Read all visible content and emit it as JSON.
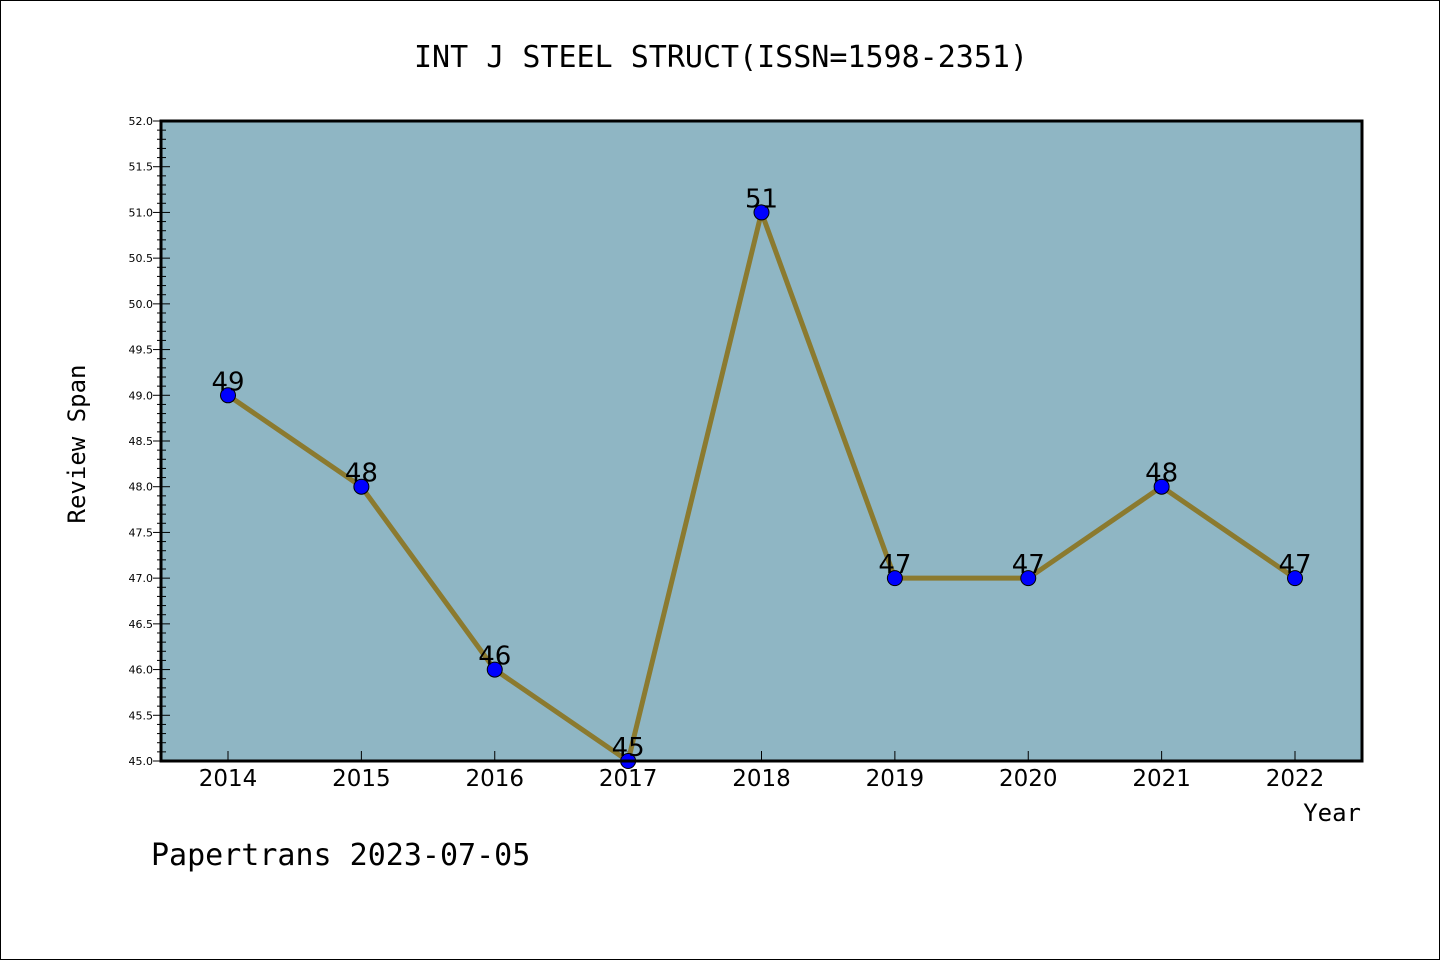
{
  "chart_data": {
    "type": "line",
    "title": "INT J STEEL STRUCT(ISSN=1598-2351)",
    "xlabel": "Year",
    "ylabel": "Review Span",
    "categories": [
      "2014",
      "2015",
      "2016",
      "2017",
      "2018",
      "2019",
      "2020",
      "2021",
      "2022"
    ],
    "series": [
      {
        "values": [
          49,
          48,
          46,
          45,
          51,
          47,
          47,
          48,
          47
        ]
      }
    ],
    "data_labels": [
      "49",
      "48",
      "46",
      "45",
      "51",
      "47",
      "47",
      "48",
      "47"
    ],
    "ylim": [
      45.0,
      52.0
    ],
    "yticks": [
      "45.0",
      "45.5",
      "46.0",
      "46.5",
      "47.0",
      "47.5",
      "48.0",
      "48.5",
      "49.0",
      "49.5",
      "50.0",
      "50.5",
      "51.0",
      "51.5",
      "52.0"
    ],
    "grid": false,
    "legend": "none",
    "colors": {
      "plot_background": "#8fb6c4",
      "line": "#8b7a2f",
      "marker": "#0000ff"
    },
    "footer": "Papertrans 2023-07-05"
  }
}
